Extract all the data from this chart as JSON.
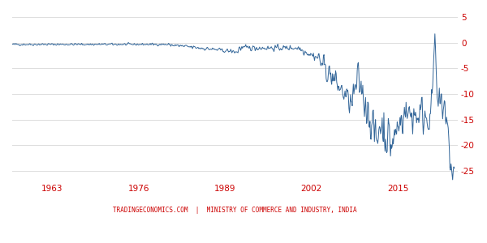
{
  "title": "",
  "watermark": "TRADINGECONOMICS.COM  |  MINISTRY OF COMMERCE AND INDUSTRY, INDIA",
  "watermark_color": "#cc0000",
  "line_color": "#336699",
  "background_color": "#ffffff",
  "grid_color": "#dddddd",
  "x_ticks": [
    1963,
    1976,
    1989,
    2002,
    2015
  ],
  "y_ticks": [
    5,
    0,
    -5,
    -10,
    -15,
    -20,
    -25
  ],
  "ylim": [
    -27,
    6
  ],
  "xlim": [
    1957,
    2024
  ],
  "tick_color_x": "#cc0000",
  "tick_color_y": "#cc0000"
}
